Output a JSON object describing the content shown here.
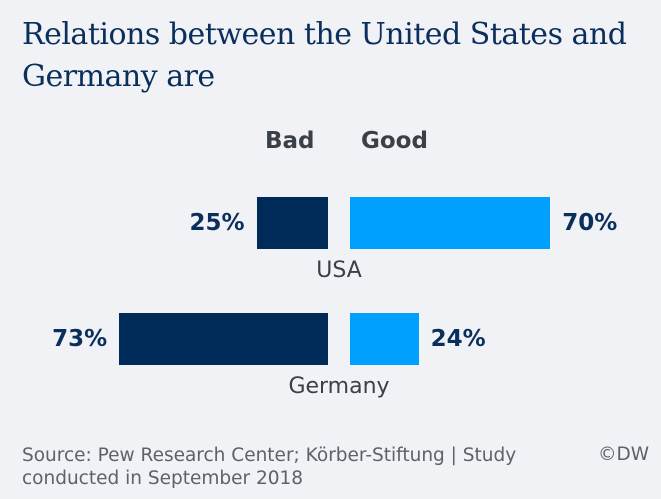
{
  "chart_data": {
    "type": "bar",
    "orientation": "horizontal-diverging",
    "title": "Relations between the United States and Germany are",
    "categories": [
      "USA",
      "Germany"
    ],
    "series": [
      {
        "name": "Bad",
        "values": [
          25,
          73
        ],
        "color": "#002a57"
      },
      {
        "name": "Good",
        "values": [
          70,
          24
        ],
        "color": "#00a0ff"
      }
    ],
    "unit": "%",
    "data_labels": {
      "bad": [
        "25%",
        "73%"
      ],
      "good": [
        "70%",
        "24%"
      ]
    },
    "legend": [
      "Bad",
      "Good"
    ],
    "legend_placement": "top",
    "grid": false
  },
  "source": "Source: Pew Research Center; Körber-Stiftung | Study conducted in September 2018",
  "credit": "©DW"
}
